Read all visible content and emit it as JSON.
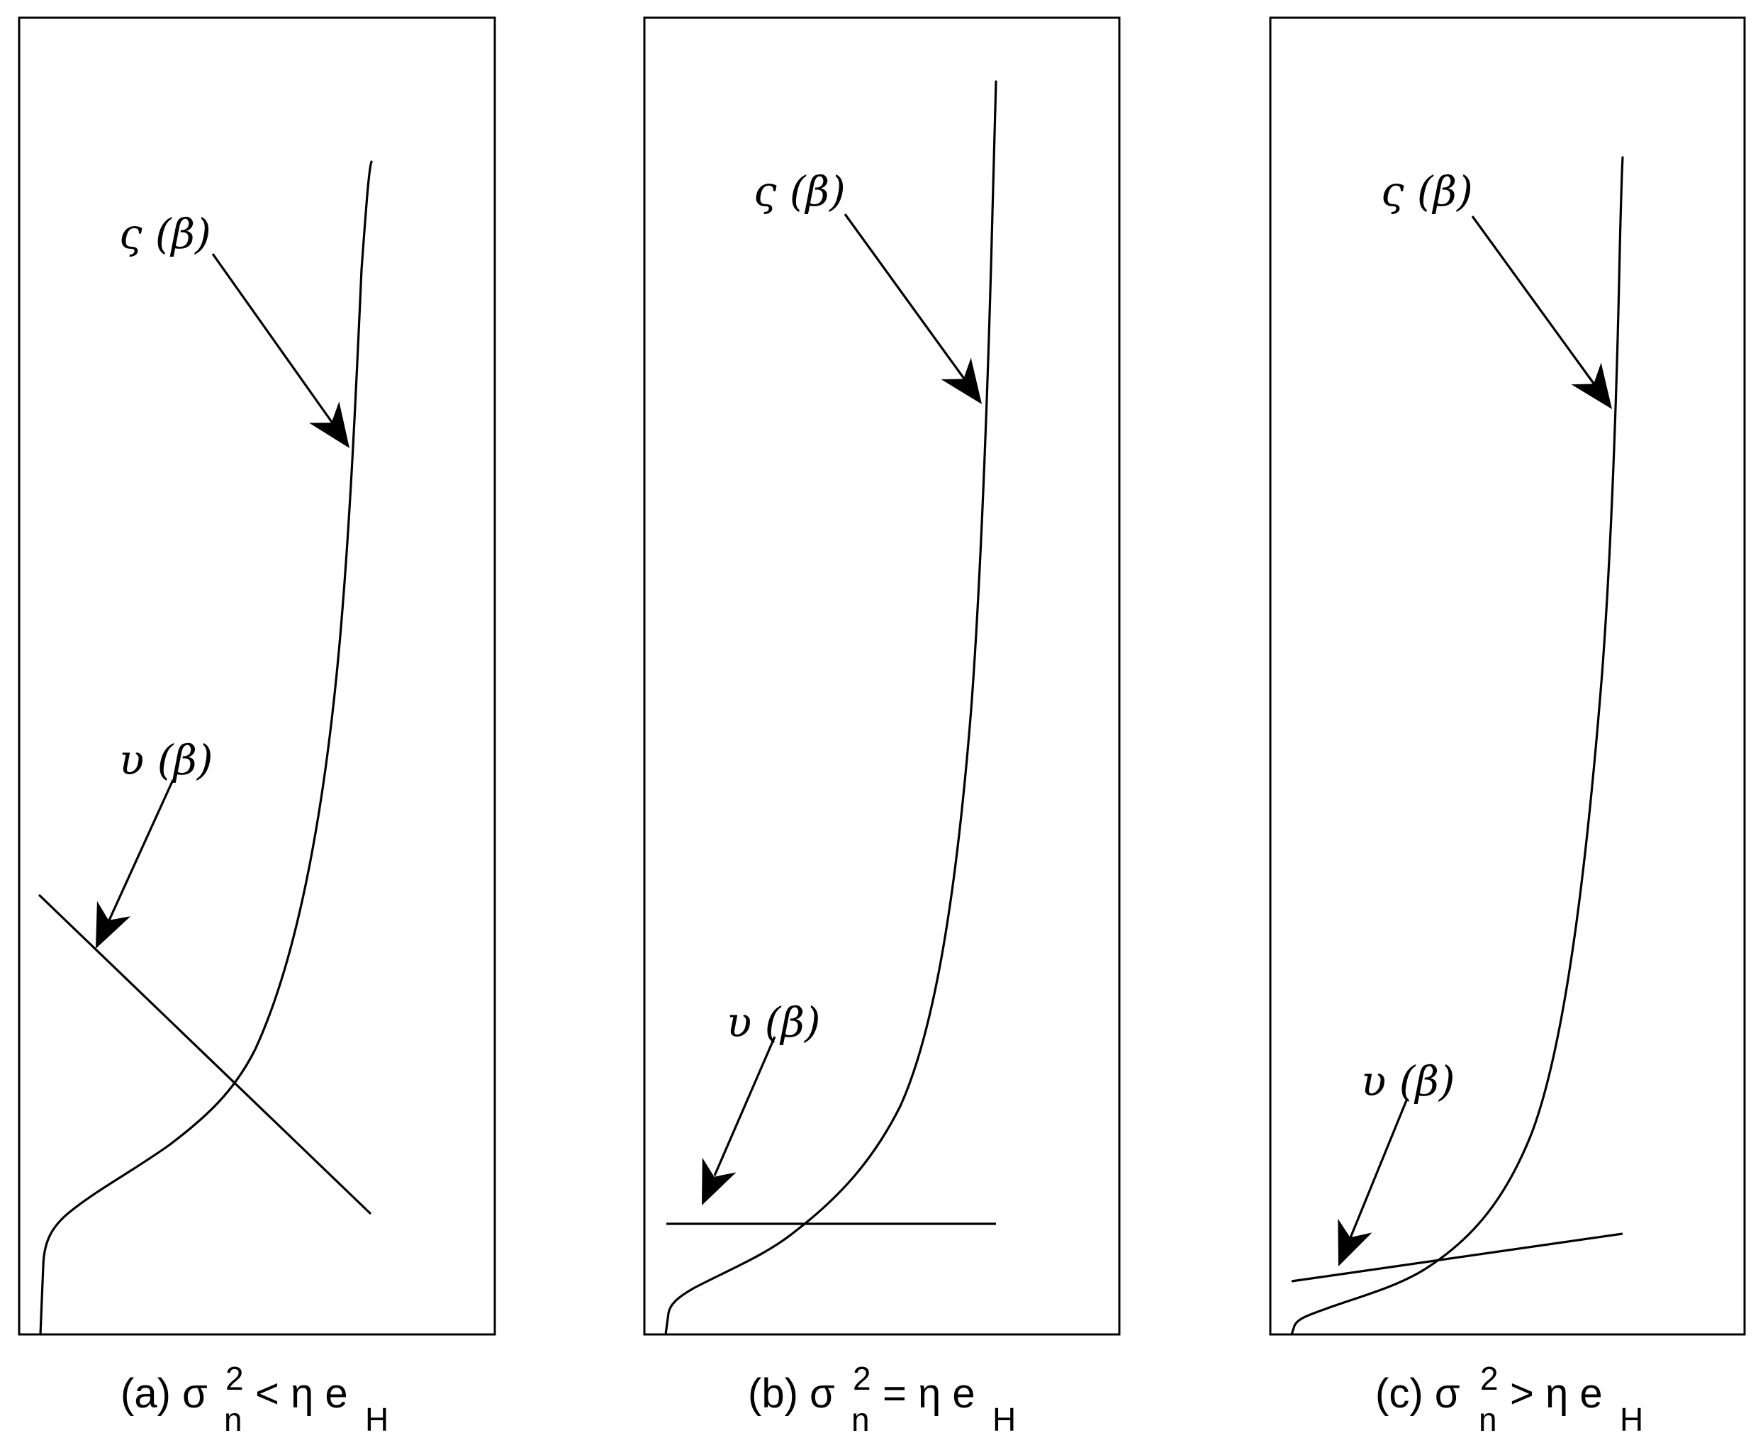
{
  "panels": [
    {
      "id": "a",
      "curve_label": "ς (β)",
      "line_label": "υ (β)",
      "caption": {
        "prefix": "(a) σ",
        "sup": "2",
        "sub": "n",
        "relation": "< η e",
        "rel_sub": "H"
      }
    },
    {
      "id": "b",
      "curve_label": "ς (β)",
      "line_label": "υ (β)",
      "caption": {
        "prefix": "(b) σ",
        "sup": "2",
        "sub": "n",
        "relation": "= η e",
        "rel_sub": "H"
      }
    },
    {
      "id": "c",
      "curve_label": "ς (β)",
      "line_label": "υ (β)",
      "caption": {
        "prefix": "(c) σ",
        "sup": "2",
        "sub": "n",
        "relation": "> η e",
        "rel_sub": "H"
      }
    }
  ]
}
